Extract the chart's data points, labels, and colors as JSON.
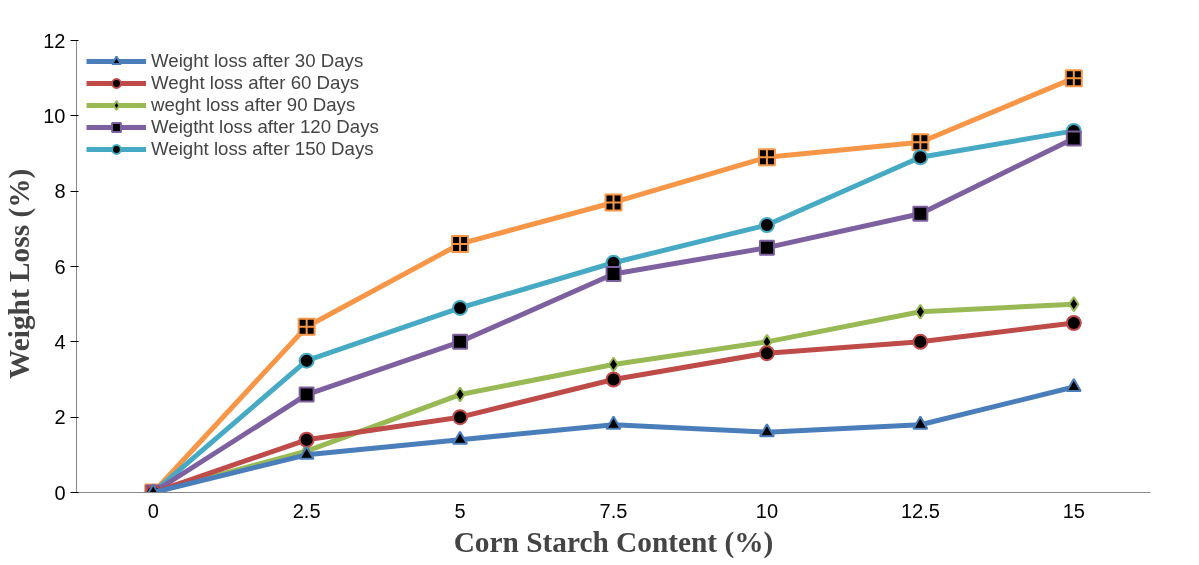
{
  "chart_data": {
    "type": "line",
    "xlabel": "Corn Starch Content (%)",
    "ylabel": "Weight  Loss  (%)",
    "categories": [
      "0",
      "2.5",
      "5",
      "7.5",
      "10",
      "12.5",
      "15"
    ],
    "ylim": [
      0,
      12
    ],
    "yticks": [
      0,
      2,
      4,
      6,
      8,
      10,
      12
    ],
    "grid": false,
    "legend": "top left",
    "series": [
      {
        "name": "Weight loss after 30 Days",
        "color": "#4a7ebb",
        "marker": "triangle",
        "values": [
          0,
          1.0,
          1.4,
          1.8,
          1.6,
          1.8,
          2.8
        ]
      },
      {
        "name": "Weght loss after 60 Days",
        "color": "#be4b48",
        "marker": "circle",
        "values": [
          0,
          1.4,
          2.0,
          3.0,
          3.7,
          4.0,
          4.5
        ]
      },
      {
        "name": "weght loss after 90 Days",
        "color": "#98b954",
        "marker": "diamond",
        "values": [
          0,
          1.1,
          2.6,
          3.4,
          4.0,
          4.8,
          5.0
        ]
      },
      {
        "name": "Weigtht loss after 120 Days",
        "color": "#7d60a0",
        "marker": "square",
        "values": [
          0,
          2.6,
          4.0,
          5.8,
          6.5,
          7.4,
          9.4
        ]
      },
      {
        "name": "Weight loss after 150 Days",
        "color": "#46aac5",
        "marker": "circle",
        "values": [
          0,
          3.5,
          4.9,
          6.1,
          7.1,
          8.9,
          9.6
        ]
      },
      {
        "color": "#f79646",
        "marker": "cross",
        "values": [
          0,
          4.4,
          6.6,
          7.7,
          8.9,
          9.3,
          11.0
        ]
      }
    ]
  }
}
